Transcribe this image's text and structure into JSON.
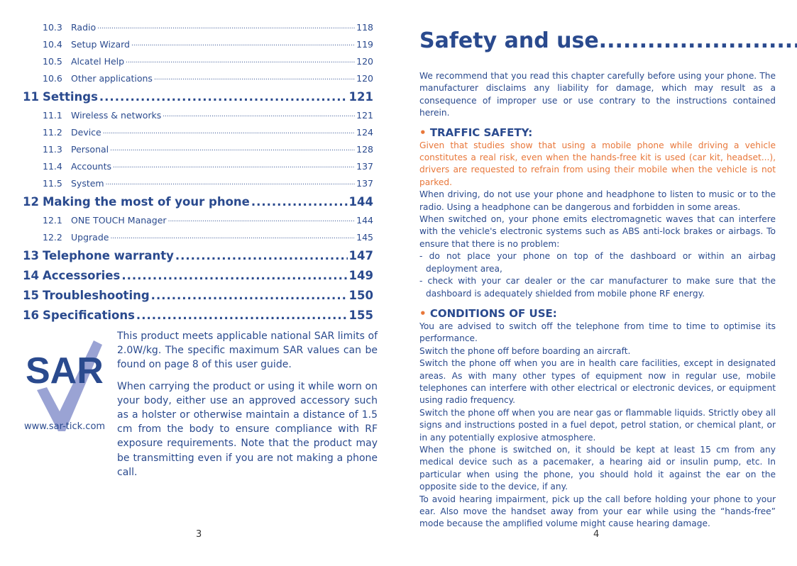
{
  "toc": [
    {
      "level": "sub",
      "num": "10.3",
      "label": "Radio",
      "page": "118"
    },
    {
      "level": "sub",
      "num": "10.4",
      "label": "Setup Wizard",
      "page": "119"
    },
    {
      "level": "sub",
      "num": "10.5",
      "label": "Alcatel Help",
      "page": "120"
    },
    {
      "level": "sub",
      "num": "10.6",
      "label": "Other applications",
      "page": "120"
    },
    {
      "level": "main",
      "num": "11",
      "label": "Settings",
      "page": "121"
    },
    {
      "level": "sub",
      "num": "11.1",
      "label": "Wireless & networks",
      "page": "121"
    },
    {
      "level": "sub",
      "num": "11.2",
      "label": "Device",
      "page": "124"
    },
    {
      "level": "sub",
      "num": "11.3",
      "label": "Personal",
      "page": "128"
    },
    {
      "level": "sub",
      "num": "11.4",
      "label": "Accounts",
      "page": "137"
    },
    {
      "level": "sub",
      "num": "11.5",
      "label": "System",
      "page": "137"
    },
    {
      "level": "main",
      "num": "12",
      "label": "Making the most of your phone",
      "page": "144"
    },
    {
      "level": "sub",
      "num": "12.1",
      "label": "ONE TOUCH Manager",
      "page": "144"
    },
    {
      "level": "sub",
      "num": "12.2",
      "label": "Upgrade",
      "page": "145"
    },
    {
      "level": "main",
      "num": "13",
      "label": "Telephone warranty",
      "page": "147"
    },
    {
      "level": "main",
      "num": "14",
      "label": "Accessories",
      "page": "149"
    },
    {
      "level": "main",
      "num": "15",
      "label": "Troubleshooting",
      "page": "150"
    },
    {
      "level": "main",
      "num": "16",
      "label": "Specifications",
      "page": "155"
    }
  ],
  "sar": {
    "logo_text": "SAR",
    "url": "www.sar-tick.com",
    "p1": "This product meets applicable national SAR limits of 2.0W/kg. The specific maximum SAR values can be found on page 8 of this user guide.",
    "p2": "When carrying the product or using it while worn on your body, either use an approved accessory such as a holster or otherwise maintain a distance of 1.5 cm from the body to ensure compliance with RF exposure requirements. Note that the product may be transmitting even if you are not making a phone call."
  },
  "left_page_num": "3",
  "right_page_num": "4",
  "right": {
    "title": "Safety and use.............................",
    "intro": "We recommend that you read this chapter carefully before using your phone. The manufacturer disclaims any liability for damage, which may result as a consequence of improper use or use contrary to the instructions contained herein.",
    "traffic_heading": "TRAFFIC SAFETY:",
    "traffic_warning": "Given that studies show that using a mobile phone while driving a vehicle constitutes a real risk, even when the hands-free kit is used (car kit, headset...), drivers are requested to refrain from using their mobile when the vehicle is not parked.",
    "traffic_paras": [
      "When driving, do not use your phone and headphone to listen to music or to the radio. Using a headphone can be dangerous and forbidden in some areas.",
      "When switched on, your phone emits electromagnetic waves that can interfere with the vehicle's electronic systems such as ABS anti-lock brakes or airbags. To ensure that there is no problem:"
    ],
    "traffic_list": [
      "- do not place your phone on top of the dashboard or within an airbag deployment area,",
      "- check with your car dealer or the car manufacturer to make sure that the dashboard is adequately shielded from mobile phone RF energy."
    ],
    "conditions_heading": "CONDITIONS OF USE:",
    "conditions_paras": [
      "You are advised to switch off the telephone from time to time to optimise its performance.",
      "Switch the phone off before boarding an aircraft.",
      "Switch the phone off when you are in health care facilities, except in designated areas. As with many other types of equipment now in regular use, mobile telephones can interfere with other electrical or electronic devices, or equipment using radio frequency.",
      "Switch the phone off when you are near gas or flammable liquids. Strictly obey all signs and instructions posted in a fuel depot, petrol station, or chemical plant, or in any potentially explosive atmosphere.",
      "When the phone is switched on, it should be kept at least 15 cm from any medical device such as a pacemaker, a hearing aid or insulin pump, etc. In particular when using the phone, you should hold it against the ear on the opposite side to the device, if any.",
      "To avoid hearing impairment, pick up the call before holding your phone to your ear. Also move the handset away from your ear while using the “hands-free” mode because the amplified volume might cause hearing damage."
    ]
  },
  "colors": {
    "blue": "#2a4a8e",
    "orange": "#e8773a",
    "tick": "#9aa3d4"
  }
}
